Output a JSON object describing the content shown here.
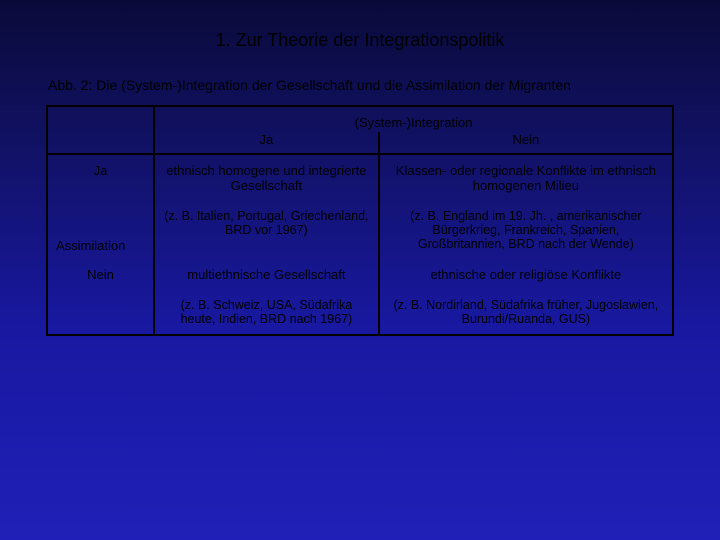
{
  "title": "1. Zur Theorie der Integrationspolitik",
  "subtitle": "Abb. 2: Die (System-)Integration der Gesellschaft und die Assimilation der Migranten",
  "table": {
    "col_header_span": "(System-)Integration",
    "col_ja": "Ja",
    "col_nein": "Nein",
    "row_label_side": "Assimilation",
    "row_ja": "Ja",
    "row_nein": "Nein",
    "cells": {
      "ja_ja_main": "ethnisch homogene und integrierte Gesellschaft",
      "ja_ja_ex": "(z. B. Italien, Portugal, Griechen­land, BRD vor 1967)",
      "ja_nein_main": "Klassen- oder regionale Konflikte im ethnisch homogenen Milieu",
      "ja_nein_ex": "(z. B. England im 19. Jh. , amerikanischer Bürgerkrieg, Frankreich, Spanien, Großbritannien, BRD nach der Wende)",
      "nein_ja_main": "multiethnische Gesellschaft",
      "nein_ja_ex": "(z. B. Schweiz, USA, Südafrika heute, Indien, BRD nach 1967)",
      "nein_nein_main": "ethnische oder religiöse Konflikte",
      "nein_nein_ex": "(z. B. Nordirland, Südafrika früher, Jugoslawien, Burundi/Ruanda, GUS)"
    }
  },
  "style": {
    "title_fontsize": 18,
    "body_fontsize": 13,
    "border_color": "#000000",
    "text_color": "#000000"
  }
}
